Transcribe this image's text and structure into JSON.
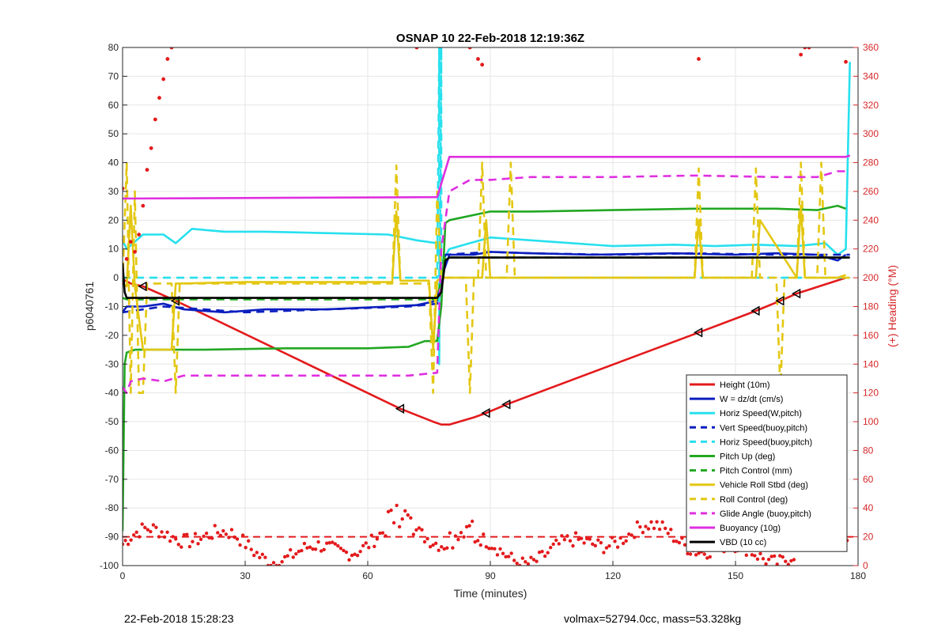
{
  "chart_data": {
    "type": "line",
    "title": "OSNAP 10 22-Feb-2018 12:19:36Z",
    "xlabel": "Time (minutes)",
    "ylabel": "p6040761",
    "y2label": "(+) Heading (°M)",
    "xlim": [
      0,
      180
    ],
    "ylim": [
      -100,
      80
    ],
    "y2lim": [
      0,
      360
    ],
    "xticks": [
      "0",
      "30",
      "60",
      "90",
      "120",
      "150",
      "180"
    ],
    "yticks": [
      "80",
      "70",
      "60",
      "50",
      "40",
      "30",
      "20",
      "10",
      "0",
      "-10",
      "-20",
      "-30",
      "-40",
      "-50",
      "-60",
      "-70",
      "-80",
      "-90",
      "-100"
    ],
    "y2ticks": [
      "360",
      "340",
      "320",
      "300",
      "280",
      "260",
      "240",
      "220",
      "200",
      "180",
      "160",
      "140",
      "120",
      "100",
      "80",
      "60",
      "40",
      "20",
      "0"
    ],
    "grid": true,
    "legend_position": "bottom-right",
    "series": [
      {
        "name": "Height (10m)",
        "color": "#e31a1c",
        "style": "solid",
        "x": [
          0,
          2,
          5,
          13,
          68,
          76,
          78,
          80,
          86,
          89,
          94,
          141,
          155,
          161,
          165,
          177
        ],
        "y": [
          -0.5,
          -2,
          -3,
          -8,
          -45.5,
          -50,
          -51,
          -51,
          -48.5,
          -47,
          -44,
          -19,
          -11.5,
          -8,
          -5.5,
          0
        ]
      },
      {
        "name": "W = dz/dt (cm/s)",
        "color": "#0b1fbf",
        "style": "solid",
        "x": [
          0,
          1,
          5,
          10,
          15,
          25,
          35,
          50,
          65,
          72,
          77,
          78,
          80,
          86,
          90,
          100,
          115,
          135,
          150,
          160,
          170,
          175,
          177
        ],
        "y": [
          -12,
          -10,
          -10,
          -9,
          -11,
          -12,
          -11,
          -11,
          -10,
          -9.5,
          -8,
          0,
          8,
          8,
          9,
          8.5,
          8,
          8.5,
          8,
          8.5,
          8,
          6,
          8
        ]
      },
      {
        "name": "Horiz Speed(W,pitch)",
        "color": "#27e0ee",
        "style": "solid",
        "x": [
          0,
          1,
          5,
          10,
          13,
          17,
          25,
          35,
          50,
          65,
          72,
          77,
          78,
          80,
          85,
          90,
          100,
          110,
          120,
          135,
          145,
          155,
          165,
          172,
          175,
          177,
          178
        ],
        "y": [
          13,
          10,
          15,
          15,
          12,
          17,
          16,
          16,
          15.5,
          15,
          13,
          12,
          5,
          10,
          12,
          14,
          13,
          12,
          11,
          11.5,
          11,
          11.5,
          11,
          12,
          8,
          10,
          75
        ]
      },
      {
        "name": "Vert Speed(buoy,pitch)",
        "color": "#0b1fbf",
        "style": "dashed",
        "x": [
          0,
          10,
          20,
          30,
          40,
          50,
          60,
          70,
          77,
          79,
          90,
          100,
          120,
          140,
          160,
          178
        ],
        "y": [
          -12,
          -10,
          -11,
          -12,
          -11.5,
          -11,
          -10.5,
          -10,
          -9,
          8,
          9,
          8.5,
          8,
          8.5,
          8,
          8
        ]
      },
      {
        "name": "Horiz Speed(buoy,pitch)",
        "color": "#27e0ee",
        "style": "dashed",
        "x": [
          0,
          77,
          77.5,
          77.5,
          78,
          78,
          178
        ],
        "y": [
          0,
          0,
          80,
          -30,
          80,
          0,
          0
        ]
      },
      {
        "name": "Pitch Up (deg)",
        "color": "#22a722",
        "style": "solid",
        "x": [
          0,
          0.5,
          1,
          3,
          10,
          20,
          40,
          60,
          70,
          74,
          77,
          78,
          79,
          80,
          90,
          100,
          120,
          140,
          160,
          170,
          175,
          177
        ],
        "y": [
          -88,
          -30,
          -26,
          -25,
          -25,
          -25,
          -24.5,
          -24.5,
          -24,
          -22,
          -22,
          -10,
          19,
          20,
          23,
          23,
          23.5,
          24,
          24,
          23.5,
          25,
          24
        ]
      },
      {
        "name": "Pitch Control (mm)",
        "color": "#22a722",
        "style": "dashed",
        "x": [
          0,
          1,
          77,
          79,
          178
        ],
        "y": [
          -7,
          -7.5,
          -7.5,
          7,
          7
        ]
      },
      {
        "name": "Vehicle Roll Stbd (deg)",
        "color": "#e3c712",
        "style": "solid",
        "x": [
          0,
          1,
          2,
          3,
          5,
          12,
          13,
          14,
          30,
          50,
          66,
          67,
          68,
          69,
          75,
          76,
          77,
          78,
          80,
          88,
          89,
          90,
          100,
          120,
          140,
          141,
          142,
          155,
          156,
          165,
          166,
          167,
          175,
          177
        ],
        "y": [
          -2,
          -3,
          25,
          -3,
          -25,
          -25,
          -2,
          -2,
          -1.5,
          -1.5,
          -1.5,
          23,
          -1,
          -1,
          -1,
          -25,
          -1,
          0,
          0,
          0,
          20,
          0,
          0,
          0,
          0,
          20,
          0,
          0,
          20,
          0,
          25,
          0,
          0,
          1
        ]
      },
      {
        "name": "Roll Control (deg)",
        "color": "#e3c712",
        "style": "dashed",
        "x": [
          0,
          1,
          2,
          3,
          4,
          5,
          6,
          12,
          13,
          14,
          30,
          66,
          67,
          68,
          75,
          76,
          77,
          78,
          84,
          85,
          86,
          87,
          88,
          89,
          90,
          94,
          95,
          96,
          140,
          141,
          142,
          154,
          155,
          156,
          160,
          161,
          162,
          165,
          166,
          167,
          170,
          171,
          172,
          178
        ],
        "y": [
          -2,
          40,
          -40,
          30,
          -40,
          -40,
          -2,
          -2,
          -40,
          -2,
          -2,
          -2,
          39,
          -2,
          -2,
          -40,
          30,
          0,
          0,
          -40,
          0,
          0,
          40,
          0,
          0,
          0,
          40,
          0,
          0,
          38,
          0,
          0,
          38,
          0,
          0,
          -40,
          0,
          0,
          40,
          0,
          0,
          40,
          0,
          0
        ]
      },
      {
        "name": "Glide Angle (buoy,pitch)",
        "color": "#e02fe0",
        "style": "dashed",
        "x": [
          0,
          1,
          2,
          5,
          10,
          15,
          30,
          50,
          70,
          77,
          78,
          80,
          85,
          90,
          100,
          120,
          140,
          160,
          170,
          175,
          178
        ],
        "y": [
          -38,
          -40,
          -36,
          -35,
          -36,
          -34,
          -34,
          -34,
          -34,
          -33,
          10,
          30,
          34,
          34,
          35,
          35,
          35.5,
          35,
          35,
          37,
          37
        ]
      },
      {
        "name": "Buoyancy (10g)",
        "color": "#e02fe0",
        "style": "solid",
        "x": [
          0,
          77,
          80,
          177,
          178
        ],
        "y": [
          27.5,
          28,
          42,
          42,
          42.5
        ]
      },
      {
        "name": "VBD (10 cc)",
        "color": "#000000",
        "style": "solid",
        "x": [
          0,
          0.5,
          1,
          2,
          77,
          78,
          79,
          80,
          178
        ],
        "y": [
          5,
          -5,
          -7,
          -7,
          -7,
          -5,
          6,
          7,
          7
        ]
      },
      {
        "name": "Heading",
        "axis": "right",
        "color": "#e31a1c",
        "style": "dots",
        "x": [
          0,
          1,
          2,
          3,
          4,
          5,
          6,
          7,
          8,
          9,
          10,
          11,
          12,
          67,
          72,
          75,
          85,
          87,
          88,
          141,
          166,
          167,
          168,
          177
        ],
        "y": [
          262,
          213,
          225,
          218,
          230,
          250,
          275,
          290,
          310,
          325,
          338,
          352,
          360,
          362,
          360,
          362,
          360,
          352,
          348,
          352,
          355,
          360,
          360,
          350
        ]
      }
    ],
    "heading_noise": {
      "y_range": [
        0,
        45
      ],
      "x_range": [
        0,
        178
      ]
    },
    "reference_line": {
      "y": -90,
      "color": "#e31a1c",
      "style": "dashed"
    }
  },
  "footer": {
    "timestamp": "22-Feb-2018 15:28:23",
    "stats": "volmax=52794.0cc, mass=53.328kg"
  }
}
